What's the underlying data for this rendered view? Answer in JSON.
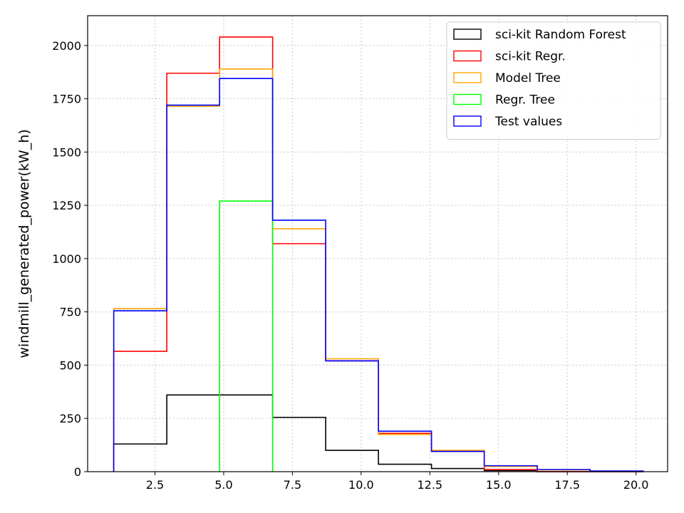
{
  "chart_data": {
    "type": "histogram-step",
    "title": "",
    "xlabel": "",
    "ylabel": "windmill_generated_power(kW_h)",
    "xlim": [
      0.05,
      21.15
    ],
    "ylim": [
      0,
      2140
    ],
    "grid": true,
    "legend_position": "top-right",
    "xticks": [
      "2.5",
      "5.0",
      "7.5",
      "10.0",
      "12.5",
      "15.0",
      "17.5",
      "20.0"
    ],
    "xtick_values": [
      2.5,
      5.0,
      7.5,
      10.0,
      12.5,
      15.0,
      17.5,
      20.0
    ],
    "yticks": [
      "0",
      "250",
      "500",
      "750",
      "1000",
      "1250",
      "1500",
      "1750",
      "2000"
    ],
    "ytick_values": [
      0,
      250,
      500,
      750,
      1000,
      1250,
      1500,
      1750,
      2000
    ],
    "series": [
      {
        "name": "sci-kit Random Forest",
        "color": "#000000",
        "edges": [
          1.0,
          2.93,
          6.78,
          8.71,
          10.63,
          12.56,
          14.48,
          16.41,
          18.33,
          20.26
        ],
        "values": [
          130,
          360,
          255,
          100,
          35,
          15,
          5,
          0,
          0
        ]
      },
      {
        "name": "sci-kit Regr.",
        "color": "#ff0000",
        "edges": [
          1.0,
          2.93,
          4.85,
          6.78,
          8.71,
          10.63,
          12.56,
          14.48,
          16.41,
          18.33,
          20.26
        ],
        "values": [
          565,
          1870,
          2040,
          1070,
          520,
          180,
          95,
          10,
          0,
          0
        ]
      },
      {
        "name": "Model Tree",
        "color": "#ffa500",
        "edges": [
          1.0,
          2.93,
          4.85,
          6.78,
          8.71,
          10.63,
          12.56,
          14.48,
          16.41,
          18.33,
          20.26
        ],
        "values": [
          765,
          1715,
          1890,
          1140,
          530,
          175,
          100,
          25,
          8,
          2
        ]
      },
      {
        "name": "Regr. Tree",
        "color": "#00ff00",
        "edges": [
          4.85,
          6.78
        ],
        "values": [
          1270
        ]
      },
      {
        "name": "Test values",
        "color": "#0000ff",
        "edges": [
          1.0,
          2.93,
          4.85,
          6.78,
          8.71,
          10.63,
          12.56,
          14.48,
          16.41,
          18.33,
          20.26
        ],
        "values": [
          755,
          1720,
          1845,
          1180,
          520,
          190,
          95,
          28,
          10,
          3
        ]
      }
    ]
  }
}
